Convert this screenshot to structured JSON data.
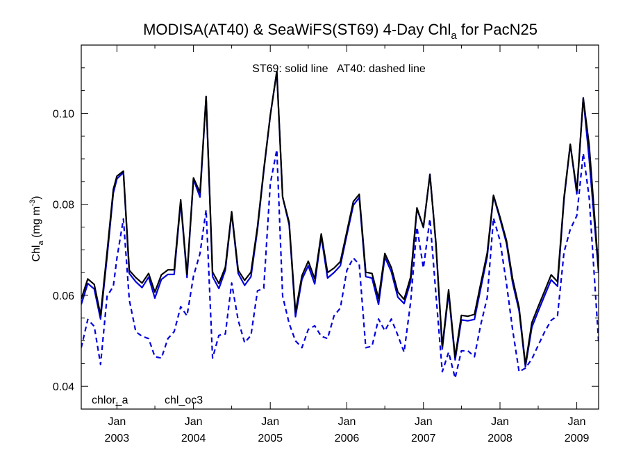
{
  "title": {
    "prefix": "MODISA(AT40) & SeaWiFS(ST69) 4-Day Chl",
    "sub": "a",
    "suffix": " for PacN25"
  },
  "annotation": "ST69: solid line   AT40: dashed line",
  "ylabel": {
    "main": "Chl",
    "sub": "a",
    "units_open": " (mg m",
    "sup": "-3",
    "units_close": ")"
  },
  "legend": [
    {
      "label": "chlor_a",
      "color": "#000000"
    },
    {
      "label": "chl_oc3",
      "color": "#0000dd"
    }
  ],
  "colors": {
    "st69_chlor_a": "#000000",
    "st69_chl_oc3": "#0000dd",
    "at40_chl_oc3": "#0000dd"
  },
  "chart_data": {
    "type": "line",
    "title": "MODISA(AT40) & SeaWiFS(ST69) 4-Day Chla for PacN25",
    "ylabel": "Chla (mg m-3)",
    "xlabel": "",
    "xlim": [
      "2002-07-15",
      "2009-04-15"
    ],
    "ylim": [
      0.035,
      0.115
    ],
    "x_ticks": [
      {
        "date": "2003-01-01",
        "month": "Jan",
        "year": "2003"
      },
      {
        "date": "2004-01-01",
        "month": "Jan",
        "year": "2004"
      },
      {
        "date": "2005-01-01",
        "month": "Jan",
        "year": "2005"
      },
      {
        "date": "2006-01-01",
        "month": "Jan",
        "year": "2006"
      },
      {
        "date": "2007-01-01",
        "month": "Jan",
        "year": "2007"
      },
      {
        "date": "2008-01-01",
        "month": "Jan",
        "year": "2008"
      },
      {
        "date": "2009-01-01",
        "month": "Jan",
        "year": "2009"
      }
    ],
    "y_ticks": [
      0.04,
      0.06,
      0.08,
      0.1
    ],
    "y_tick_labels": [
      "0.04",
      "0.06",
      "0.08",
      "0.10"
    ],
    "series": [
      {
        "name": "chlor_a",
        "sensor": "ST69",
        "style": "solid",
        "color": "#000000",
        "points": [
          [
            "2002-07-15",
            0.0592
          ],
          [
            "2002-08-15",
            0.0636
          ],
          [
            "2002-09-15",
            0.0624
          ],
          [
            "2002-10-15",
            0.0557
          ],
          [
            "2002-11-15",
            0.0695
          ],
          [
            "2002-12-15",
            0.0833
          ],
          [
            "2003-01-01",
            0.0862
          ],
          [
            "2003-02-01",
            0.0873
          ],
          [
            "2003-03-01",
            0.0655
          ],
          [
            "2003-04-01",
            0.0639
          ],
          [
            "2003-05-01",
            0.0627
          ],
          [
            "2003-06-01",
            0.0648
          ],
          [
            "2003-07-01",
            0.0607
          ],
          [
            "2003-08-01",
            0.0645
          ],
          [
            "2003-09-01",
            0.0656
          ],
          [
            "2003-10-01",
            0.0656
          ],
          [
            "2003-11-01",
            0.081
          ],
          [
            "2003-12-01",
            0.0646
          ],
          [
            "2004-01-01",
            0.0858
          ],
          [
            "2004-02-01",
            0.0826
          ],
          [
            "2004-03-01",
            0.1037
          ],
          [
            "2004-04-01",
            0.0651
          ],
          [
            "2004-05-01",
            0.0626
          ],
          [
            "2004-06-01",
            0.0662
          ],
          [
            "2004-07-01",
            0.0784
          ],
          [
            "2004-08-01",
            0.0655
          ],
          [
            "2004-09-01",
            0.0633
          ],
          [
            "2004-10-01",
            0.0651
          ],
          [
            "2004-11-01",
            0.0751
          ],
          [
            "2004-12-01",
            0.0876
          ],
          [
            "2005-01-01",
            0.0995
          ],
          [
            "2005-02-01",
            0.1092
          ],
          [
            "2005-03-01",
            0.0816
          ],
          [
            "2005-04-01",
            0.076
          ],
          [
            "2005-05-01",
            0.0563
          ],
          [
            "2005-06-01",
            0.0643
          ],
          [
            "2005-07-01",
            0.0675
          ],
          [
            "2005-08-01",
            0.0636
          ],
          [
            "2005-09-01",
            0.0735
          ],
          [
            "2005-10-01",
            0.065
          ],
          [
            "2005-11-01",
            0.066
          ],
          [
            "2005-12-01",
            0.0674
          ],
          [
            "2006-01-01",
            0.074
          ],
          [
            "2006-02-01",
            0.0806
          ],
          [
            "2006-03-01",
            0.0822
          ],
          [
            "2006-04-01",
            0.0651
          ],
          [
            "2006-05-01",
            0.0648
          ],
          [
            "2006-06-01",
            0.0593
          ],
          [
            "2006-07-01",
            0.0692
          ],
          [
            "2006-08-01",
            0.0661
          ],
          [
            "2006-09-01",
            0.0607
          ],
          [
            "2006-10-01",
            0.0591
          ],
          [
            "2006-11-01",
            0.064
          ],
          [
            "2006-12-01",
            0.0792
          ],
          [
            "2007-01-01",
            0.075
          ],
          [
            "2007-02-01",
            0.0865
          ],
          [
            "2007-03-01",
            0.0717
          ],
          [
            "2007-04-01",
            0.0488
          ],
          [
            "2007-05-01",
            0.0612
          ],
          [
            "2007-06-01",
            0.0464
          ],
          [
            "2007-07-01",
            0.0556
          ],
          [
            "2007-08-01",
            0.0554
          ],
          [
            "2007-09-01",
            0.0558
          ],
          [
            "2007-10-01",
            0.0625
          ],
          [
            "2007-11-01",
            0.0693
          ],
          [
            "2007-12-01",
            0.082
          ],
          [
            "2008-01-01",
            0.0772
          ],
          [
            "2008-02-01",
            0.072
          ],
          [
            "2008-03-01",
            0.0637
          ],
          [
            "2008-04-01",
            0.0573
          ],
          [
            "2008-05-01",
            0.0448
          ],
          [
            "2008-06-01",
            0.054
          ],
          [
            "2008-07-01",
            0.0575
          ],
          [
            "2008-08-01",
            0.061
          ],
          [
            "2008-09-01",
            0.0645
          ],
          [
            "2008-10-01",
            0.063
          ],
          [
            "2008-11-01",
            0.0815
          ],
          [
            "2008-12-01",
            0.0932
          ],
          [
            "2009-01-01",
            0.083
          ],
          [
            "2009-02-01",
            0.1033
          ],
          [
            "2009-03-01",
            0.093
          ],
          [
            "2009-04-15",
            0.0655
          ]
        ]
      },
      {
        "name": "chl_oc3",
        "sensor": "ST69",
        "style": "solid",
        "color": "#0000dd",
        "points": [
          [
            "2002-07-15",
            0.058
          ],
          [
            "2002-08-15",
            0.0626
          ],
          [
            "2002-09-15",
            0.0614
          ],
          [
            "2002-10-15",
            0.0548
          ],
          [
            "2002-11-15",
            0.0685
          ],
          [
            "2002-12-15",
            0.0825
          ],
          [
            "2003-01-01",
            0.0856
          ],
          [
            "2003-02-01",
            0.087
          ],
          [
            "2003-03-01",
            0.0648
          ],
          [
            "2003-04-01",
            0.063
          ],
          [
            "2003-05-01",
            0.0617
          ],
          [
            "2003-06-01",
            0.064
          ],
          [
            "2003-07-01",
            0.0594
          ],
          [
            "2003-08-01",
            0.0635
          ],
          [
            "2003-09-01",
            0.0646
          ],
          [
            "2003-10-01",
            0.0646
          ],
          [
            "2003-11-01",
            0.0805
          ],
          [
            "2003-12-01",
            0.0639
          ],
          [
            "2004-01-01",
            0.0855
          ],
          [
            "2004-02-01",
            0.0816
          ],
          [
            "2004-03-01",
            0.1037
          ],
          [
            "2004-04-01",
            0.0641
          ],
          [
            "2004-05-01",
            0.0615
          ],
          [
            "2004-06-01",
            0.0655
          ],
          [
            "2004-07-01",
            0.078
          ],
          [
            "2004-08-01",
            0.0648
          ],
          [
            "2004-09-01",
            0.0622
          ],
          [
            "2004-10-01",
            0.0641
          ],
          [
            "2004-11-01",
            0.0745
          ],
          [
            "2004-12-01",
            0.0872
          ],
          [
            "2005-01-01",
            0.0995
          ],
          [
            "2005-02-01",
            0.1092
          ],
          [
            "2005-03-01",
            0.0816
          ],
          [
            "2005-04-01",
            0.0755
          ],
          [
            "2005-05-01",
            0.0553
          ],
          [
            "2005-06-01",
            0.0635
          ],
          [
            "2005-07-01",
            0.0665
          ],
          [
            "2005-08-01",
            0.0625
          ],
          [
            "2005-09-01",
            0.073
          ],
          [
            "2005-10-01",
            0.0638
          ],
          [
            "2005-11-01",
            0.065
          ],
          [
            "2005-12-01",
            0.0665
          ],
          [
            "2006-01-01",
            0.0733
          ],
          [
            "2006-02-01",
            0.0798
          ],
          [
            "2006-03-01",
            0.0815
          ],
          [
            "2006-04-01",
            0.0641
          ],
          [
            "2006-05-01",
            0.0638
          ],
          [
            "2006-06-01",
            0.058
          ],
          [
            "2006-07-01",
            0.0684
          ],
          [
            "2006-08-01",
            0.0652
          ],
          [
            "2006-09-01",
            0.0596
          ],
          [
            "2006-10-01",
            0.0582
          ],
          [
            "2006-11-01",
            0.063
          ],
          [
            "2006-12-01",
            0.079
          ],
          [
            "2007-01-01",
            0.0749
          ],
          [
            "2007-02-01",
            0.0866
          ],
          [
            "2007-03-01",
            0.0715
          ],
          [
            "2007-04-01",
            0.0482
          ],
          [
            "2007-05-01",
            0.0605
          ],
          [
            "2007-06-01",
            0.0458
          ],
          [
            "2007-07-01",
            0.0546
          ],
          [
            "2007-08-01",
            0.0544
          ],
          [
            "2007-09-01",
            0.0547
          ],
          [
            "2007-10-01",
            0.0615
          ],
          [
            "2007-11-01",
            0.0685
          ],
          [
            "2007-12-01",
            0.0818
          ],
          [
            "2008-01-01",
            0.0768
          ],
          [
            "2008-02-01",
            0.0714
          ],
          [
            "2008-03-01",
            0.0628
          ],
          [
            "2008-04-01",
            0.0566
          ],
          [
            "2008-05-01",
            0.0443
          ],
          [
            "2008-06-01",
            0.053
          ],
          [
            "2008-07-01",
            0.0565
          ],
          [
            "2008-08-01",
            0.06
          ],
          [
            "2008-09-01",
            0.0634
          ],
          [
            "2008-10-01",
            0.062
          ],
          [
            "2008-11-01",
            0.081
          ],
          [
            "2008-12-01",
            0.0932
          ],
          [
            "2009-01-01",
            0.0823
          ],
          [
            "2009-02-01",
            0.1034
          ],
          [
            "2009-03-01",
            0.09
          ],
          [
            "2009-04-15",
            0.065
          ]
        ]
      },
      {
        "name": "chl_oc3",
        "sensor": "AT40",
        "style": "dashed",
        "color": "#0000dd",
        "points": [
          [
            "2002-07-15",
            0.0485
          ],
          [
            "2002-08-15",
            0.0547
          ],
          [
            "2002-09-15",
            0.0532
          ],
          [
            "2002-10-15",
            0.0448
          ],
          [
            "2002-11-15",
            0.0598
          ],
          [
            "2002-12-15",
            0.062
          ],
          [
            "2003-01-01",
            0.0682
          ],
          [
            "2003-02-01",
            0.0768
          ],
          [
            "2003-03-01",
            0.059
          ],
          [
            "2003-04-01",
            0.052
          ],
          [
            "2003-05-01",
            0.051
          ],
          [
            "2003-06-01",
            0.0505
          ],
          [
            "2003-07-01",
            0.0465
          ],
          [
            "2003-08-01",
            0.0462
          ],
          [
            "2003-09-01",
            0.0505
          ],
          [
            "2003-10-01",
            0.052
          ],
          [
            "2003-11-01",
            0.0575
          ],
          [
            "2003-12-01",
            0.0555
          ],
          [
            "2004-01-01",
            0.0642
          ],
          [
            "2004-02-01",
            0.0692
          ],
          [
            "2004-03-01",
            0.0788
          ],
          [
            "2004-04-01",
            0.0462
          ],
          [
            "2004-05-01",
            0.0512
          ],
          [
            "2004-06-01",
            0.0515
          ],
          [
            "2004-07-01",
            0.0627
          ],
          [
            "2004-08-01",
            0.0545
          ],
          [
            "2004-09-01",
            0.0496
          ],
          [
            "2004-10-01",
            0.0512
          ],
          [
            "2004-11-01",
            0.061
          ],
          [
            "2004-12-01",
            0.0615
          ],
          [
            "2005-01-01",
            0.0845
          ],
          [
            "2005-02-01",
            0.092
          ],
          [
            "2005-03-01",
            0.0598
          ],
          [
            "2005-04-01",
            0.0538
          ],
          [
            "2005-05-01",
            0.05
          ],
          [
            "2005-06-01",
            0.0485
          ],
          [
            "2005-07-01",
            0.0525
          ],
          [
            "2005-08-01",
            0.0533
          ],
          [
            "2005-09-01",
            0.051
          ],
          [
            "2005-10-01",
            0.0505
          ],
          [
            "2005-11-01",
            0.0555
          ],
          [
            "2005-12-01",
            0.0572
          ],
          [
            "2006-01-01",
            0.0655
          ],
          [
            "2006-02-01",
            0.0682
          ],
          [
            "2006-03-01",
            0.0668
          ],
          [
            "2006-04-01",
            0.0485
          ],
          [
            "2006-05-01",
            0.0488
          ],
          [
            "2006-06-01",
            0.0548
          ],
          [
            "2006-07-01",
            0.0522
          ],
          [
            "2006-08-01",
            0.0548
          ],
          [
            "2006-09-01",
            0.0512
          ],
          [
            "2006-10-01",
            0.0475
          ],
          [
            "2006-11-01",
            0.0585
          ],
          [
            "2006-12-01",
            0.075
          ],
          [
            "2007-01-01",
            0.066
          ],
          [
            "2007-02-01",
            0.0768
          ],
          [
            "2007-03-01",
            0.0605
          ],
          [
            "2007-04-01",
            0.0432
          ],
          [
            "2007-05-01",
            0.0475
          ],
          [
            "2007-06-01",
            0.0418
          ],
          [
            "2007-07-01",
            0.0478
          ],
          [
            "2007-08-01",
            0.0478
          ],
          [
            "2007-09-01",
            0.0465
          ],
          [
            "2007-10-01",
            0.0535
          ],
          [
            "2007-11-01",
            0.0595
          ],
          [
            "2007-12-01",
            0.077
          ],
          [
            "2008-01-01",
            0.072
          ],
          [
            "2008-02-01",
            0.0625
          ],
          [
            "2008-03-01",
            0.0525
          ],
          [
            "2008-04-01",
            0.0432
          ],
          [
            "2008-05-01",
            0.044
          ],
          [
            "2008-06-01",
            0.046
          ],
          [
            "2008-07-01",
            0.049
          ],
          [
            "2008-08-01",
            0.052
          ],
          [
            "2008-09-01",
            0.0545
          ],
          [
            "2008-10-01",
            0.0555
          ],
          [
            "2008-11-01",
            0.0695
          ],
          [
            "2008-12-01",
            0.0745
          ],
          [
            "2009-01-01",
            0.0775
          ],
          [
            "2009-02-01",
            0.0912
          ],
          [
            "2009-03-01",
            0.0815
          ],
          [
            "2009-04-15",
            0.0498
          ]
        ]
      }
    ]
  }
}
